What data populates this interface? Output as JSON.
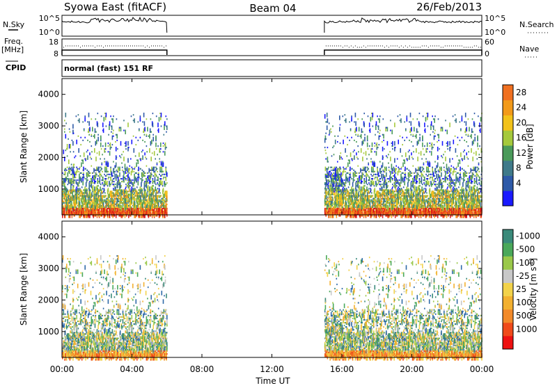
{
  "header": {
    "radar": "Syowa East (fitACF)",
    "beam": "Beam 04",
    "date": "26/Feb/2013"
  },
  "summary": {
    "nsky_label": "N.Sky",
    "nsky_ticks": [
      "10^5",
      "10^0"
    ],
    "nsearch_label": "N.Search",
    "nsearch_ticks": [
      "10^5",
      "10^0"
    ],
    "freq_label": "Freq.",
    "freq_unit": "[MHz]",
    "freq_ticks": [
      "18",
      "8"
    ],
    "nave_label": "Nave",
    "nave_ticks": [
      "60",
      "0"
    ],
    "cpid_label": "CPID",
    "cpid_text": "normal (fast) 151 RF"
  },
  "colors": {
    "power_scale": [
      "#1a1aff",
      "#2e5aa8",
      "#3f7a8a",
      "#4a9a5a",
      "#a5c93c",
      "#f2c21a",
      "#f29a1a",
      "#f07020",
      "#e83a1a",
      "#d81818"
    ],
    "velocity_scale": [
      "#ee1111",
      "#f04a1a",
      "#f28a2a",
      "#f2b030",
      "#f2d24a",
      "#c8c8c8",
      "#9ac84a",
      "#4aa85a",
      "#3a8a7a",
      "#2e6aa8",
      "#2a3aa8"
    ]
  },
  "chart_data": [
    {
      "type": "heatmap",
      "name": "power-panel",
      "ylabel": "Slant Range [km]",
      "ylim": [
        180,
        4500
      ],
      "yticks": [
        "1000",
        "2000",
        "3000",
        "4000"
      ],
      "xlabel": "",
      "xticks": [
        "00:00",
        "04:00",
        "08:00",
        "12:00",
        "16:00",
        "20:00",
        "00:00"
      ],
      "colorbar_label": "Power [dB]",
      "colorbar_ticks": [
        "4",
        "8",
        "12",
        "16",
        "20",
        "24",
        "28"
      ],
      "data_intervals_ut": [
        [
          0.0,
          6.0
        ],
        [
          15.0,
          24.0
        ]
      ],
      "grid": false
    },
    {
      "type": "heatmap",
      "name": "velocity-panel",
      "ylabel": "Slant Range [km]",
      "ylim": [
        180,
        4500
      ],
      "yticks": [
        "1000",
        "2000",
        "3000",
        "4000"
      ],
      "xlabel": "Time UT",
      "xticks": [
        "00:00",
        "04:00",
        "08:00",
        "12:00",
        "16:00",
        "20:00",
        "00:00"
      ],
      "colorbar_label": "Velocity [m s^-1]",
      "colorbar_ticks": [
        "-1000",
        "-500",
        "-100",
        "-25",
        "25",
        "100",
        "500",
        "1000"
      ],
      "data_intervals_ut": [
        [
          0.0,
          6.0
        ],
        [
          15.0,
          24.0
        ]
      ],
      "grid": false
    }
  ]
}
